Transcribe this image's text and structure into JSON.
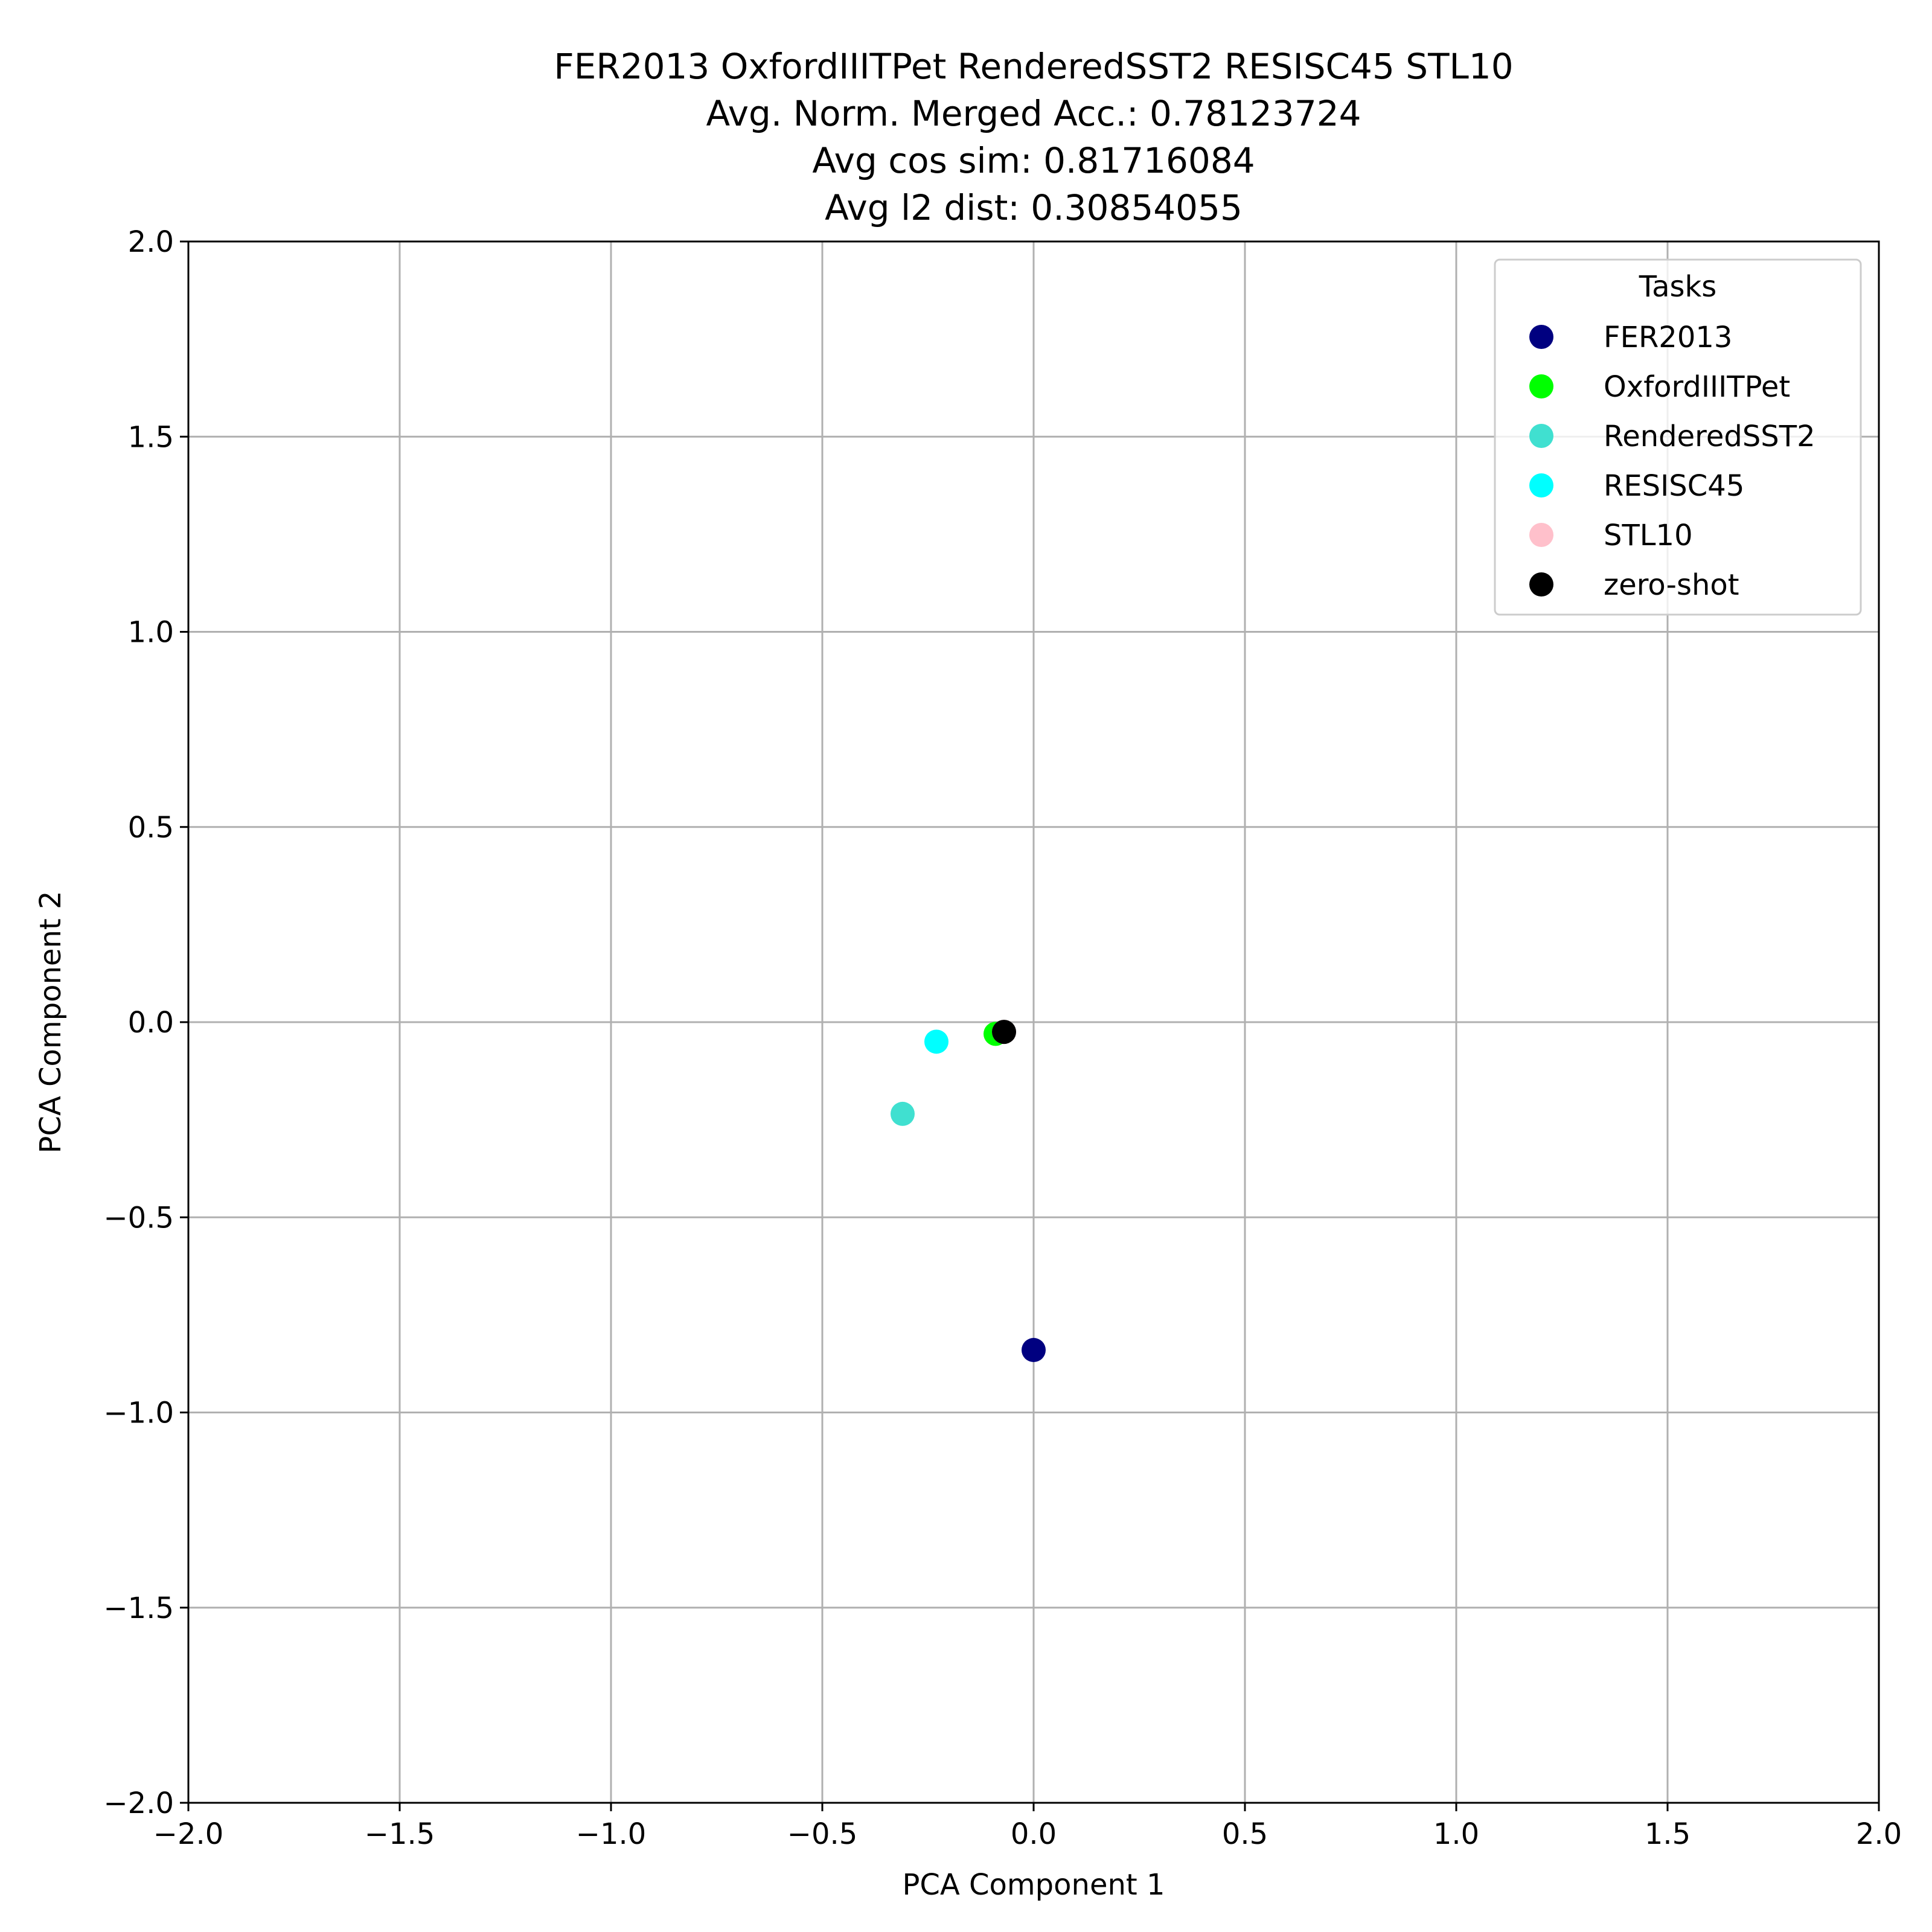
{
  "chart_data": {
    "type": "scatter",
    "title_lines": [
      "FER2013 OxfordIIITPet RenderedSST2 RESISC45 STL10",
      "Avg. Norm. Merged Acc.: 0.78123724",
      "Avg cos sim: 0.81716084",
      "Avg l2 dist: 0.30854055"
    ],
    "xlabel": "PCA Component 1",
    "ylabel": "PCA Component 2",
    "xlim": [
      -2.0,
      2.0
    ],
    "ylim": [
      -2.0,
      2.0
    ],
    "xticks": [
      -2.0,
      -1.5,
      -1.0,
      -0.5,
      0.0,
      0.5,
      1.0,
      1.5,
      2.0
    ],
    "yticks": [
      -2.0,
      -1.5,
      -1.0,
      -0.5,
      0.0,
      0.5,
      1.0,
      1.5,
      2.0
    ],
    "xtick_labels": [
      "−2.0",
      "−1.5",
      "−1.0",
      "−0.5",
      "0.0",
      "0.5",
      "1.0",
      "1.5",
      "2.0"
    ],
    "ytick_labels": [
      "−2.0",
      "−1.5",
      "−1.0",
      "−0.5",
      "0.0",
      "0.5",
      "1.0",
      "1.5",
      "2.0"
    ],
    "grid": true,
    "legend": {
      "title": "Tasks",
      "location": "upper right"
    },
    "series": [
      {
        "name": "FER2013",
        "color": "#000080",
        "points": [
          {
            "x": 0.0,
            "y": -0.84
          }
        ]
      },
      {
        "name": "OxfordIIITPet",
        "color": "#00ff00",
        "points": [
          {
            "x": -0.09,
            "y": -0.03
          }
        ]
      },
      {
        "name": "RenderedSST2",
        "color": "#40e0d0",
        "points": [
          {
            "x": -0.31,
            "y": -0.235
          }
        ]
      },
      {
        "name": "RESISC45",
        "color": "#00ffff",
        "points": [
          {
            "x": -0.23,
            "y": -0.05
          }
        ]
      },
      {
        "name": "STL10",
        "color": "#ffc0cb",
        "points": [
          {
            "x": -0.07,
            "y": -0.025
          }
        ]
      },
      {
        "name": "zero-shot",
        "color": "#000000",
        "points": [
          {
            "x": -0.07,
            "y": -0.025
          }
        ]
      }
    ]
  }
}
